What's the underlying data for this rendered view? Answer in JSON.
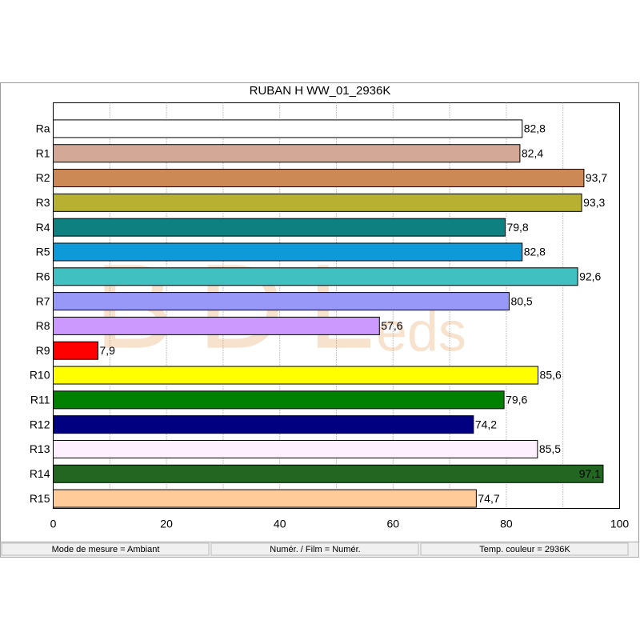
{
  "chart_data": {
    "type": "barh",
    "title": "RUBAN H WW_01_2936K",
    "categories": [
      "Ra",
      "R1",
      "R2",
      "R3",
      "R4",
      "R5",
      "R6",
      "R7",
      "R8",
      "R9",
      "R10",
      "R11",
      "R12",
      "R13",
      "R14",
      "R15"
    ],
    "values": [
      82.8,
      82.4,
      93.7,
      93.3,
      79.8,
      82.8,
      92.6,
      80.5,
      57.6,
      7.9,
      85.6,
      79.6,
      74.2,
      85.5,
      97.1,
      74.7
    ],
    "value_labels": [
      "82,8",
      "82,4",
      "93,7",
      "93,3",
      "79,8",
      "82,8",
      "92,6",
      "80,5",
      "57,6",
      "7,9",
      "85,6",
      "79,6",
      "74,2",
      "85,5",
      "97,1",
      "74,7"
    ],
    "colors": [
      "#ffffff",
      "#d4a896",
      "#cc8855",
      "#b8b030",
      "#0e8080",
      "#0e9ad8",
      "#40c0c0",
      "#9898f8",
      "#cc99ff",
      "#ff0000",
      "#ffff00",
      "#008000",
      "#000080",
      "#fff0ff",
      "#226622",
      "#ffcc99"
    ],
    "xlim": [
      0,
      100
    ],
    "xticks": [
      0,
      20,
      40,
      60,
      80,
      100
    ],
    "grid_lines": [
      10,
      20,
      30,
      40,
      50,
      60,
      70,
      80,
      90
    ],
    "grid": true,
    "watermark": {
      "main": "BDL",
      "suffix": "eds"
    }
  },
  "status_bar": [
    "Mode de mesure = Ambiant",
    "Numér. / Film = Numér.",
    "Temp. couleur = 2936K"
  ]
}
